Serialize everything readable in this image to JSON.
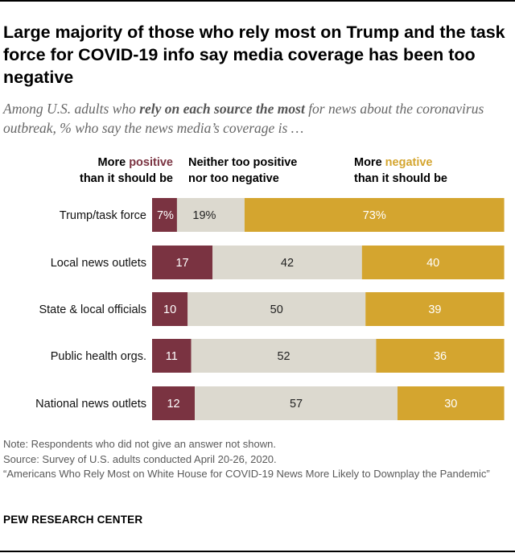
{
  "header": {
    "title": "Large majority of those who rely most on Trump and the task force for COVID-19 info say media coverage has been too negative",
    "subtitle_pre": "Among U.S. adults who ",
    "subtitle_bold": "rely on each source the most",
    "subtitle_post": " for news about the coronavirus outbreak, % who say the news media’s coverage is …"
  },
  "legend": {
    "pos_line1_a": "More ",
    "pos_line1_b": "positive",
    "pos_line2": "than it should be",
    "neither_line1": "Neither too positive",
    "neither_line2": "nor too negative",
    "neg_line1_a": "More ",
    "neg_line1_b": "negative",
    "neg_line2": "than it should be"
  },
  "colors": {
    "positive": "#7a3341",
    "neither": "#dcd9cf",
    "negative": "#d4a52f",
    "label_light": "#ffffff",
    "label_dark": "#222222"
  },
  "chart_data": {
    "type": "bar",
    "orientation": "horizontal",
    "stacked": true,
    "categories": [
      "Trump/task force",
      "Local news outlets",
      "State & local officials",
      "Public health orgs.",
      "National news outlets"
    ],
    "series": [
      {
        "name": "More positive than it should be",
        "values": [
          7,
          17,
          10,
          11,
          12
        ],
        "labels": [
          "7%",
          "17",
          "10",
          "11",
          "12"
        ]
      },
      {
        "name": "Neither too positive nor too negative",
        "values": [
          19,
          42,
          50,
          52,
          57
        ],
        "labels": [
          "19%",
          "42",
          "50",
          "52",
          "57"
        ]
      },
      {
        "name": "More negative than it should be",
        "values": [
          73,
          40,
          39,
          36,
          30
        ],
        "labels": [
          "73%",
          "40",
          "39",
          "36",
          "30"
        ]
      }
    ],
    "xlim": [
      0,
      100
    ],
    "grid": false
  },
  "footer": {
    "note": "Note: Respondents who did not give an answer not shown.",
    "source": "Source: Survey of U.S. adults conducted April 20-26, 2020.",
    "report": "“Americans Who Rely Most on White House for COVID-19 News More Likely to Downplay the Pandemic”",
    "brand": "PEW RESEARCH CENTER"
  }
}
